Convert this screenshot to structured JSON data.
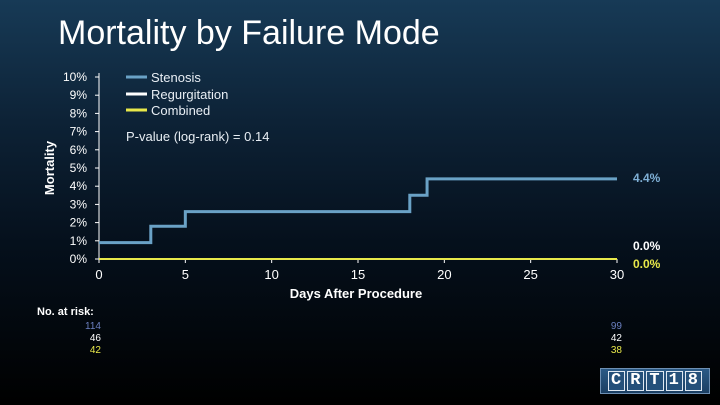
{
  "title": "Mortality by Failure Mode",
  "chart_data": {
    "type": "line",
    "step": true,
    "xlabel": "Days After Procedure",
    "ylabel": "Mortality",
    "xlim": [
      0,
      30
    ],
    "ylim": [
      0,
      10
    ],
    "x_ticks": [
      "0",
      "5",
      "10",
      "15",
      "20",
      "25",
      "30"
    ],
    "y_ticks": [
      "0%",
      "1%",
      "2%",
      "3%",
      "4%",
      "5%",
      "6%",
      "7%",
      "8%",
      "9%",
      "10%"
    ],
    "grid": false,
    "legend_position": "top-left",
    "annotation": "P-value (log-rank) = 0.14",
    "series": [
      {
        "name": "Stenosis",
        "color": "#6aa2c6",
        "x": [
          0,
          3,
          5,
          18,
          19,
          30
        ],
        "y": [
          0.9,
          1.8,
          2.6,
          3.5,
          4.4,
          4.4
        ],
        "end_label": "4.4%"
      },
      {
        "name": "Regurgitation",
        "color": "#ffffff",
        "x": [
          0,
          30
        ],
        "y": [
          0,
          0
        ],
        "end_label": "0.0%"
      },
      {
        "name": "Combined",
        "color": "#e8e84a",
        "x": [
          0,
          30
        ],
        "y": [
          0,
          0
        ],
        "end_label": "0.0%"
      }
    ]
  },
  "at_risk": {
    "label": "No. at risk:",
    "rows": [
      {
        "color": "#6a7fc0",
        "start": "114",
        "end": "99"
      },
      {
        "color": "#ffffff",
        "start": "46",
        "end": "42"
      },
      {
        "color": "#e8e84a",
        "start": "42",
        "end": "38"
      }
    ]
  },
  "logo": {
    "letters": [
      "C",
      "R",
      "T",
      "1",
      "8"
    ]
  }
}
